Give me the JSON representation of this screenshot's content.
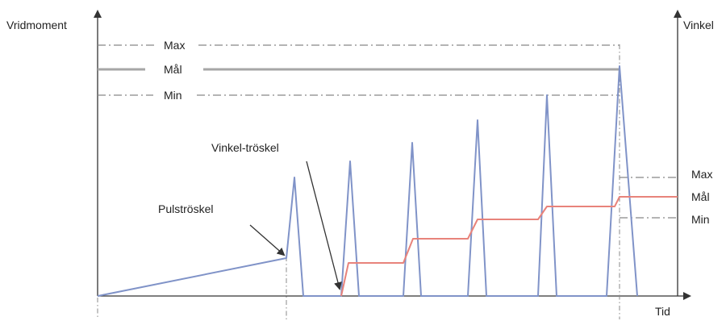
{
  "labels": {
    "y_left": "Vridmoment",
    "y_right": "Vinkel",
    "x": "Tid",
    "torque_max": "Max",
    "torque_target": "Mål",
    "torque_min": "Min",
    "angle_max": "Max",
    "angle_target": "Mål",
    "angle_min": "Min",
    "pulse_threshold": "Pulströskel",
    "angle_threshold": "Vinkel-tröskel"
  },
  "colors": {
    "axis": "#333333",
    "limit_dashdot": "#888888",
    "target_line": "#a6a6a6",
    "torque_trace": "#8093c8",
    "angle_trace": "#e8837b",
    "arrow": "#333333"
  }
}
